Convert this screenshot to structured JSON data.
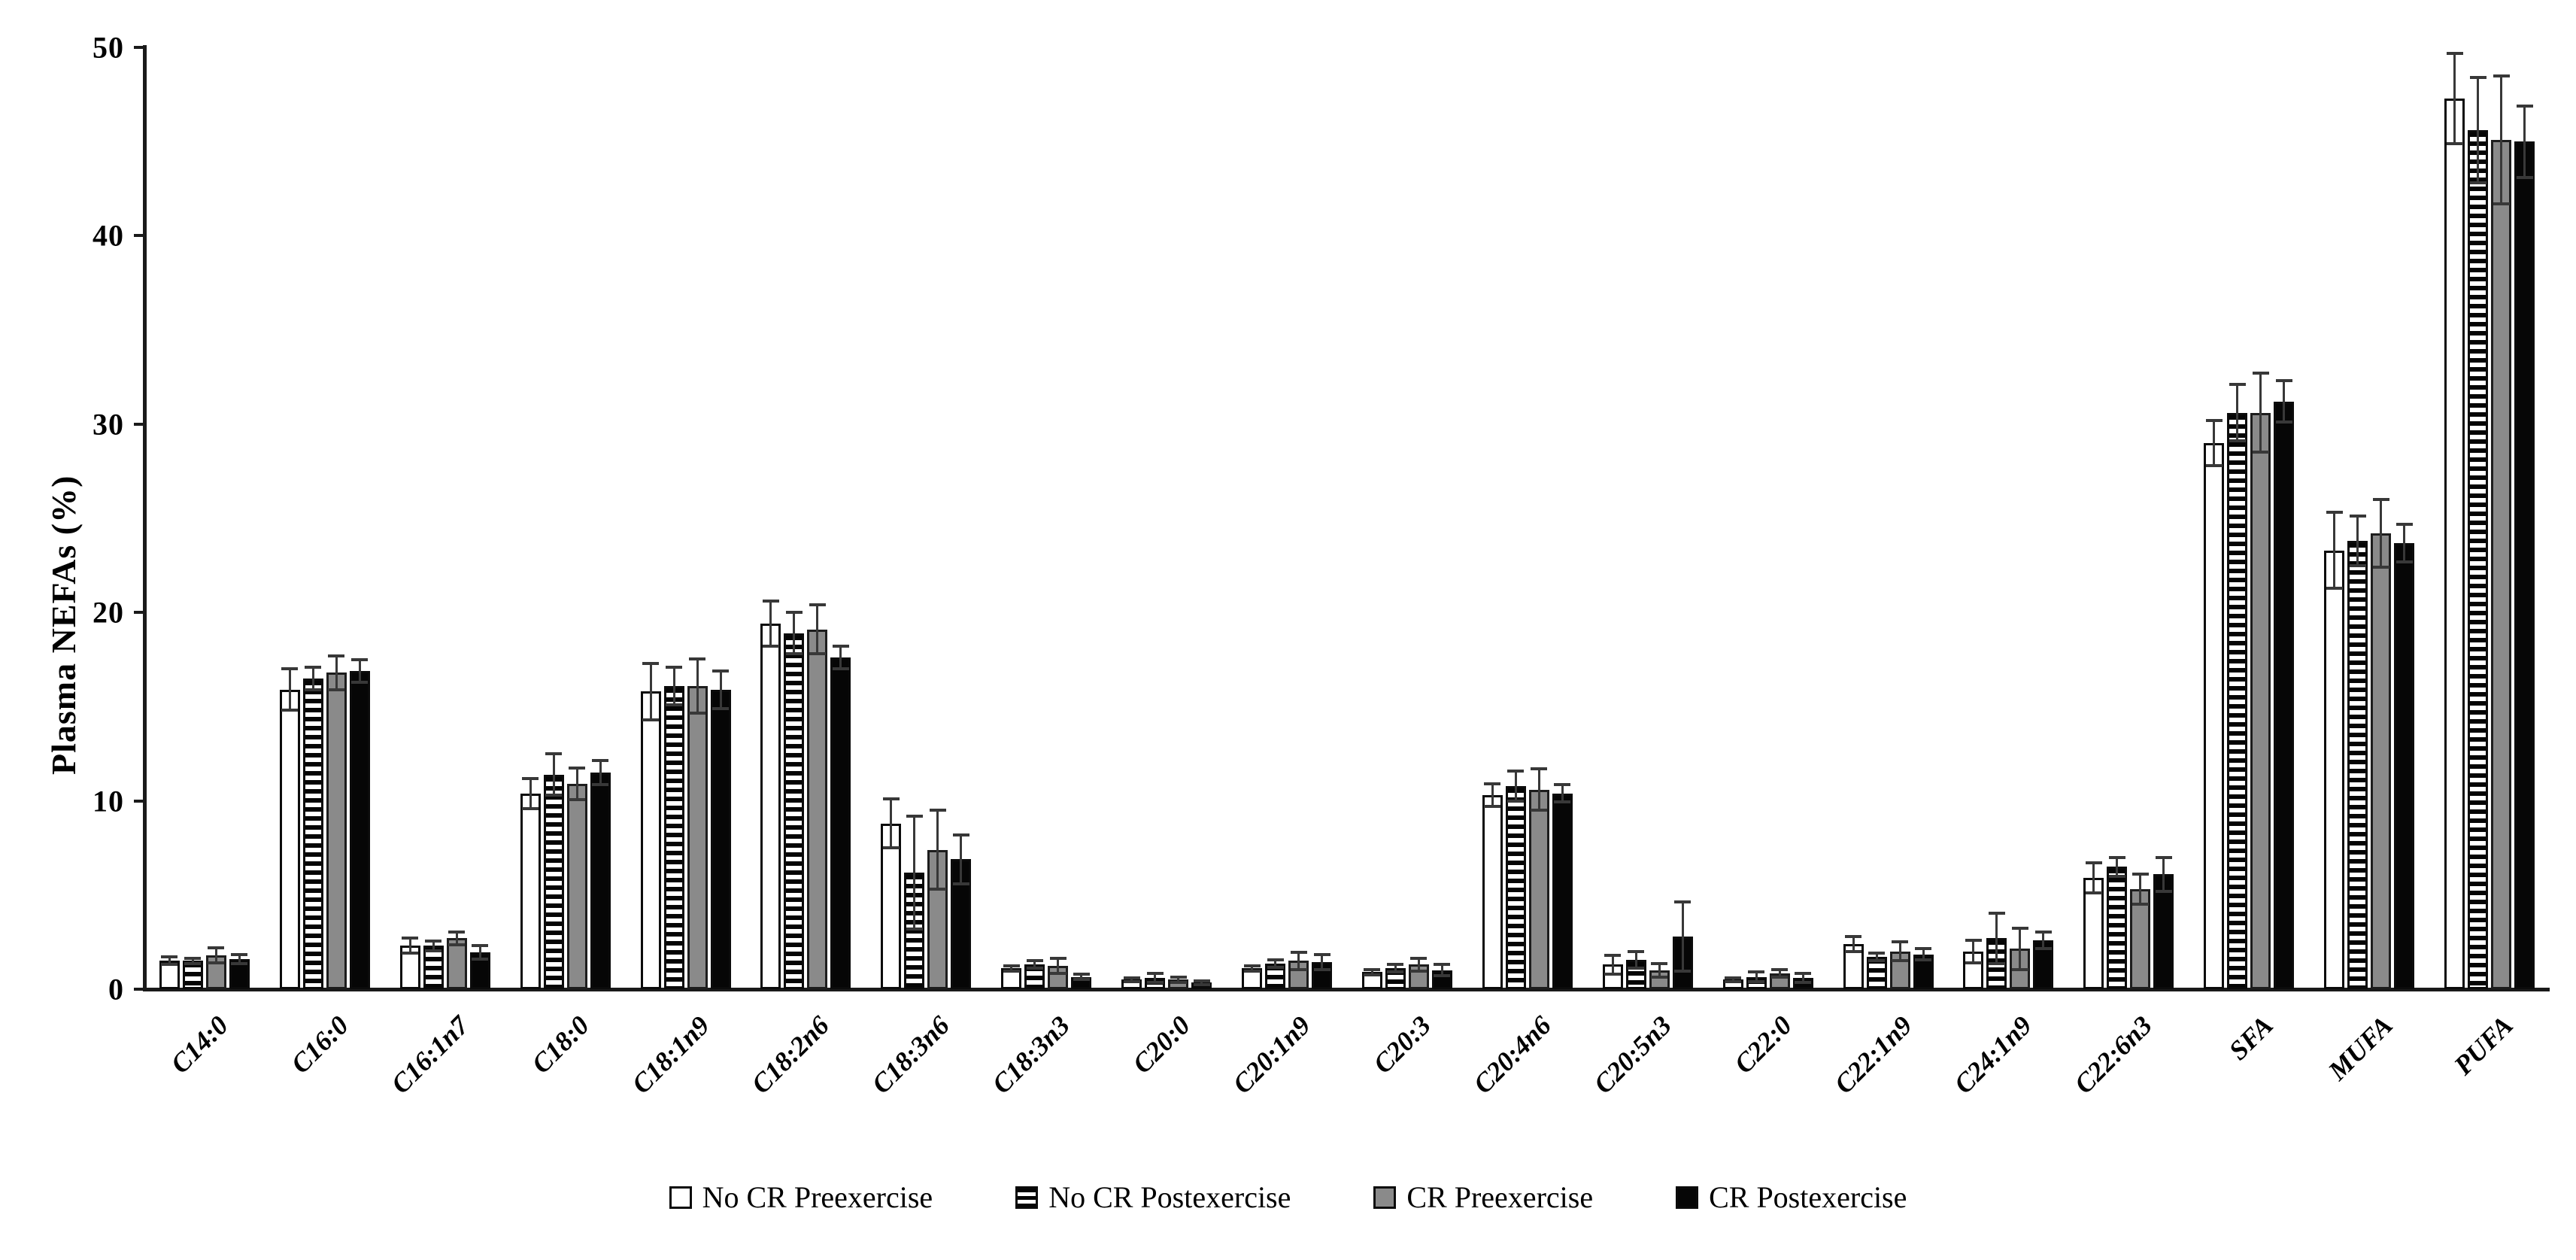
{
  "y_axis": {
    "label": "Plasma NEFAs (%)",
    "ticks": [
      "0",
      "10",
      "20",
      "30",
      "40",
      "50"
    ],
    "min": 0,
    "max": 50
  },
  "legend": {
    "items": [
      {
        "label": "No CR Preexercise",
        "swatch": "white-square-icon"
      },
      {
        "label": "No CR Postexercise",
        "swatch": "striped-square-icon"
      },
      {
        "label": "CR Preexercise",
        "swatch": "gray-square-icon"
      },
      {
        "label": "CR Postexercise",
        "swatch": "black-square-icon"
      }
    ]
  },
  "colors": {
    "bar_white": "#ffffff",
    "bar_gray": "#8a8a8a",
    "bar_black": "#060606",
    "stripe_dark": "#050505",
    "axis": "#1a1a1a",
    "error_bar": "#383838"
  },
  "chart_data": {
    "type": "bar",
    "title": "",
    "xlabel": "",
    "ylabel": "Plasma NEFAs (%)",
    "ylim": [
      0,
      50
    ],
    "grid": false,
    "legend_position": "bottom",
    "error_bars": "plus-minus",
    "categories": [
      "C14:0",
      "C16:0",
      "C16:1n7",
      "C18:0",
      "C18:1n9",
      "C18:2n6",
      "C18:3n6",
      "C18:3n3",
      "C20:0",
      "C20:1n9",
      "C20:3",
      "C20:4n6",
      "C20:5n3",
      "C22:0",
      "C22:1n9",
      "C24:1n9",
      "C22:6n3",
      "SFA",
      "MUFA",
      "PUFA"
    ],
    "series": [
      {
        "name": "No CR Preexercise",
        "style": "white",
        "values": [
          1.5,
          15.9,
          2.3,
          10.4,
          15.8,
          19.4,
          8.8,
          1.1,
          0.5,
          1.1,
          0.9,
          10.3,
          1.3,
          0.5,
          2.4,
          2.0,
          5.9,
          29.0,
          23.3,
          47.3
        ],
        "errors": [
          0.2,
          1.1,
          0.4,
          0.8,
          1.5,
          1.2,
          1.3,
          0.15,
          0.1,
          0.15,
          0.15,
          0.6,
          0.5,
          0.1,
          0.4,
          0.6,
          0.8,
          1.2,
          2.0,
          2.4
        ]
      },
      {
        "name": "No CR Postexercise",
        "style": "stripes",
        "values": [
          1.5,
          16.5,
          2.3,
          11.4,
          16.1,
          18.9,
          6.2,
          1.3,
          0.6,
          1.35,
          1.1,
          10.8,
          1.55,
          0.65,
          1.7,
          2.7,
          6.5,
          30.6,
          23.8,
          45.6
        ],
        "errors": [
          0.15,
          0.6,
          0.25,
          1.1,
          1.0,
          1.1,
          3.0,
          0.2,
          0.25,
          0.2,
          0.2,
          0.8,
          0.45,
          0.25,
          0.2,
          1.35,
          0.5,
          1.5,
          1.3,
          2.8
        ]
      },
      {
        "name": "CR Preexercise",
        "style": "gray",
        "values": [
          1.8,
          16.8,
          2.7,
          10.9,
          16.1,
          19.1,
          7.4,
          1.25,
          0.5,
          1.5,
          1.3,
          10.6,
          1.0,
          0.85,
          2.0,
          2.15,
          5.3,
          30.6,
          24.2,
          45.1
        ],
        "errors": [
          0.4,
          0.9,
          0.35,
          0.85,
          1.45,
          1.3,
          2.1,
          0.4,
          0.15,
          0.45,
          0.35,
          1.1,
          0.35,
          0.2,
          0.5,
          1.1,
          0.8,
          2.1,
          1.8,
          3.4
        ]
      },
      {
        "name": "CR Postexercise",
        "style": "black",
        "values": [
          1.6,
          16.9,
          1.95,
          11.5,
          15.9,
          17.6,
          6.9,
          0.65,
          0.35,
          1.45,
          1.0,
          10.4,
          2.8,
          0.6,
          1.85,
          2.6,
          6.1,
          31.2,
          23.7,
          45.0
        ],
        "errors": [
          0.25,
          0.6,
          0.35,
          0.65,
          1.0,
          0.6,
          1.3,
          0.15,
          0.1,
          0.4,
          0.3,
          0.45,
          1.85,
          0.25,
          0.3,
          0.45,
          0.9,
          1.1,
          1.0,
          1.9
        ]
      }
    ]
  }
}
